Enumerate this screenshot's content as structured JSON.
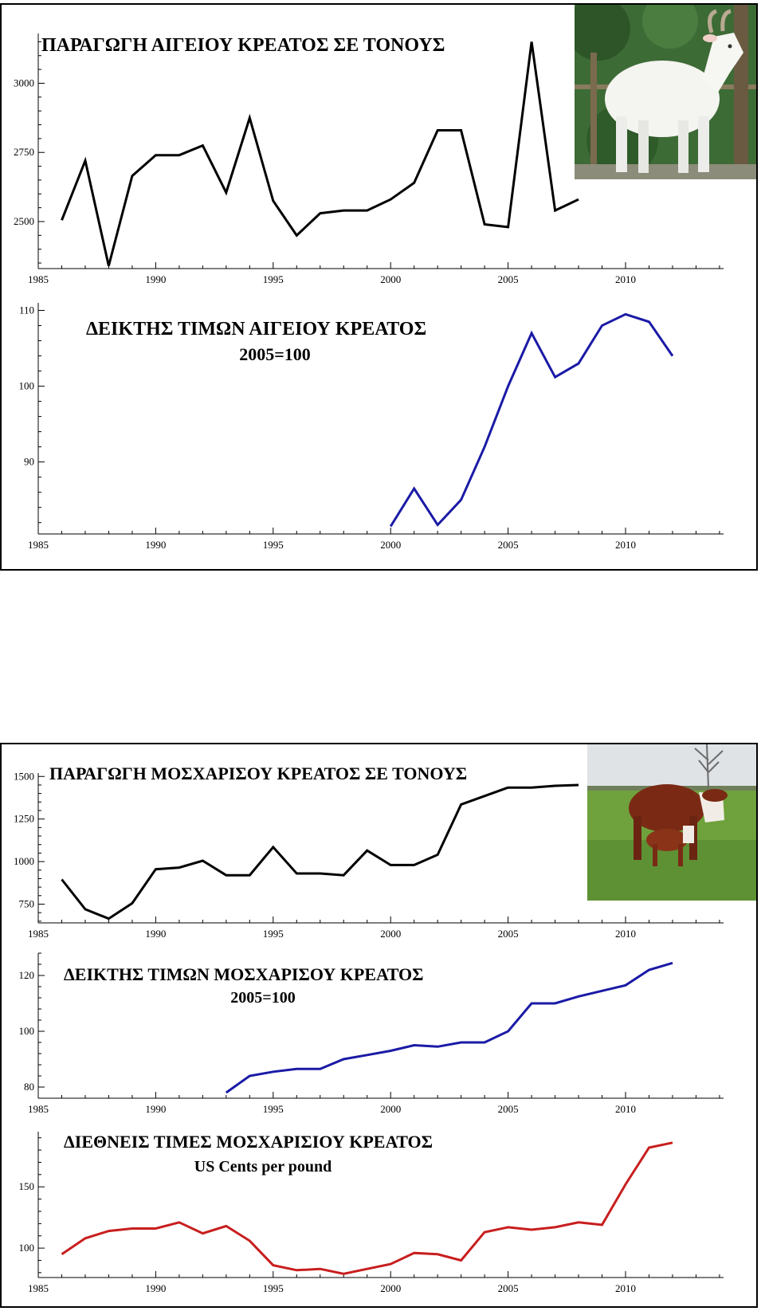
{
  "chart_data": [
    {
      "type": "line",
      "title": "ΠΑΡΑΓΩΓΗ ΑΙΓΕΙΟΥ ΚΡΕΑΤΟΣ ΣΕ ΤΟΝΟΥΣ",
      "subtitle": "",
      "x_ticks": [
        1985,
        1990,
        1995,
        2000,
        2005,
        2010
      ],
      "y_ticks": [
        2500,
        2750,
        3000
      ],
      "xlim": [
        1985,
        2014
      ],
      "ylim": [
        2330,
        3180
      ],
      "color": "#000000",
      "series": [
        {
          "x": [
            1986,
            1987,
            1988,
            1989,
            1990,
            1991,
            1992,
            1993,
            1994,
            1995,
            1996,
            1997,
            1998,
            1999,
            2000,
            2001,
            2002,
            2003,
            2004,
            2005,
            2006,
            2007,
            2008
          ],
          "values": [
            2505,
            2720,
            2340,
            2665,
            2740,
            2740,
            2775,
            2605,
            2875,
            2575,
            2450,
            2530,
            2540,
            2540,
            2580,
            2640,
            2830,
            2830,
            2490,
            2480,
            3150,
            2540,
            2580
          ]
        }
      ]
    },
    {
      "type": "line",
      "title": "ΔΕΙΚΤΗΣ ΤΙΜΩΝ ΑΙΓΕΙΟΥ ΚΡΕΑΤΟΣ",
      "subtitle": "2005=100",
      "x_ticks": [
        1985,
        1990,
        1995,
        2000,
        2005,
        2010
      ],
      "y_ticks": [
        90,
        100,
        110
      ],
      "xlim": [
        1985,
        2014
      ],
      "ylim": [
        80.5,
        111
      ],
      "color": "#1a1aa6",
      "series": [
        {
          "x": [
            2000,
            2001,
            2002,
            2003,
            2004,
            2005,
            2006,
            2007,
            2008,
            2009,
            2010,
            2011,
            2012
          ],
          "values": [
            81.5,
            86.5,
            81.7,
            85,
            92,
            100,
            107,
            101.2,
            103,
            108,
            109.5,
            108.5,
            104
          ]
        }
      ]
    },
    {
      "type": "line",
      "title": "ΠΑΡΑΓΩΓΗ ΜΟΣΧΑΡΙΣΟΥ ΚΡΕΑΤΟΣ ΣΕ ΤΟΝΟΥΣ",
      "subtitle": "",
      "x_ticks": [
        1985,
        1990,
        1995,
        2000,
        2005,
        2010
      ],
      "y_ticks": [
        750,
        1000,
        1250,
        1500
      ],
      "xlim": [
        1985,
        2014
      ],
      "ylim": [
        640,
        1520
      ],
      "color": "#000000",
      "series": [
        {
          "x": [
            1986,
            1987,
            1988,
            1989,
            1990,
            1991,
            1992,
            1993,
            1994,
            1995,
            1996,
            1997,
            1998,
            1999,
            2000,
            2001,
            2002,
            2003,
            2004,
            2005,
            2006,
            2007,
            2008
          ],
          "values": [
            895,
            720,
            665,
            755,
            955,
            965,
            1005,
            920,
            920,
            1085,
            930,
            930,
            920,
            1065,
            980,
            980,
            1040,
            1335,
            1385,
            1435,
            1435,
            1445,
            1450
          ]
        }
      ]
    },
    {
      "type": "line",
      "title": "ΔΕΙΚΤΗΣ ΤΙΜΩΝ ΜΟΣΧΑΡΙΣΟΥ ΚΡΕΑΤΟΣ",
      "subtitle": "2005=100",
      "x_ticks": [
        1985,
        1990,
        1995,
        2000,
        2005,
        2010
      ],
      "y_ticks": [
        80,
        100,
        120
      ],
      "xlim": [
        1985,
        2014
      ],
      "ylim": [
        76,
        128
      ],
      "color": "#1a1aa6",
      "series": [
        {
          "x": [
            1993,
            1994,
            1995,
            1996,
            1997,
            1998,
            1999,
            2000,
            2001,
            2002,
            2003,
            2004,
            2005,
            2006,
            2007,
            2008,
            2009,
            2010,
            2011,
            2012
          ],
          "values": [
            78,
            84,
            85.5,
            86.5,
            86.5,
            90,
            91.5,
            93,
            95,
            94.5,
            96,
            96,
            100,
            110,
            110,
            112.5,
            114.5,
            116.5,
            122,
            124.5
          ]
        }
      ]
    },
    {
      "type": "line",
      "title": "ΔΙΕΘΝΕΙΣ ΤΙΜΕΣ ΜΟΣΧΑΡΙΣΙΟΥ ΚΡΕΑΤΟΣ",
      "subtitle": "US Cents per pound",
      "x_ticks": [
        1985,
        1990,
        1995,
        2000,
        2005,
        2010
      ],
      "y_ticks": [
        100,
        150
      ],
      "xlim": [
        1985,
        2014
      ],
      "ylim": [
        76,
        195
      ],
      "color": "#c81e1e",
      "series": [
        {
          "x": [
            1986,
            1987,
            1988,
            1989,
            1990,
            1991,
            1992,
            1993,
            1994,
            1995,
            1996,
            1997,
            1998,
            1999,
            2000,
            2001,
            2002,
            2003,
            2004,
            2005,
            2006,
            2007,
            2008,
            2009,
            2010,
            2011,
            2012
          ],
          "values": [
            95,
            108,
            114,
            116,
            116,
            121,
            112,
            118,
            106,
            86,
            82,
            83,
            79,
            83,
            87,
            96,
            95,
            90,
            113,
            117,
            115,
            117,
            121,
            119,
            152,
            182,
            186
          ]
        }
      ]
    }
  ]
}
